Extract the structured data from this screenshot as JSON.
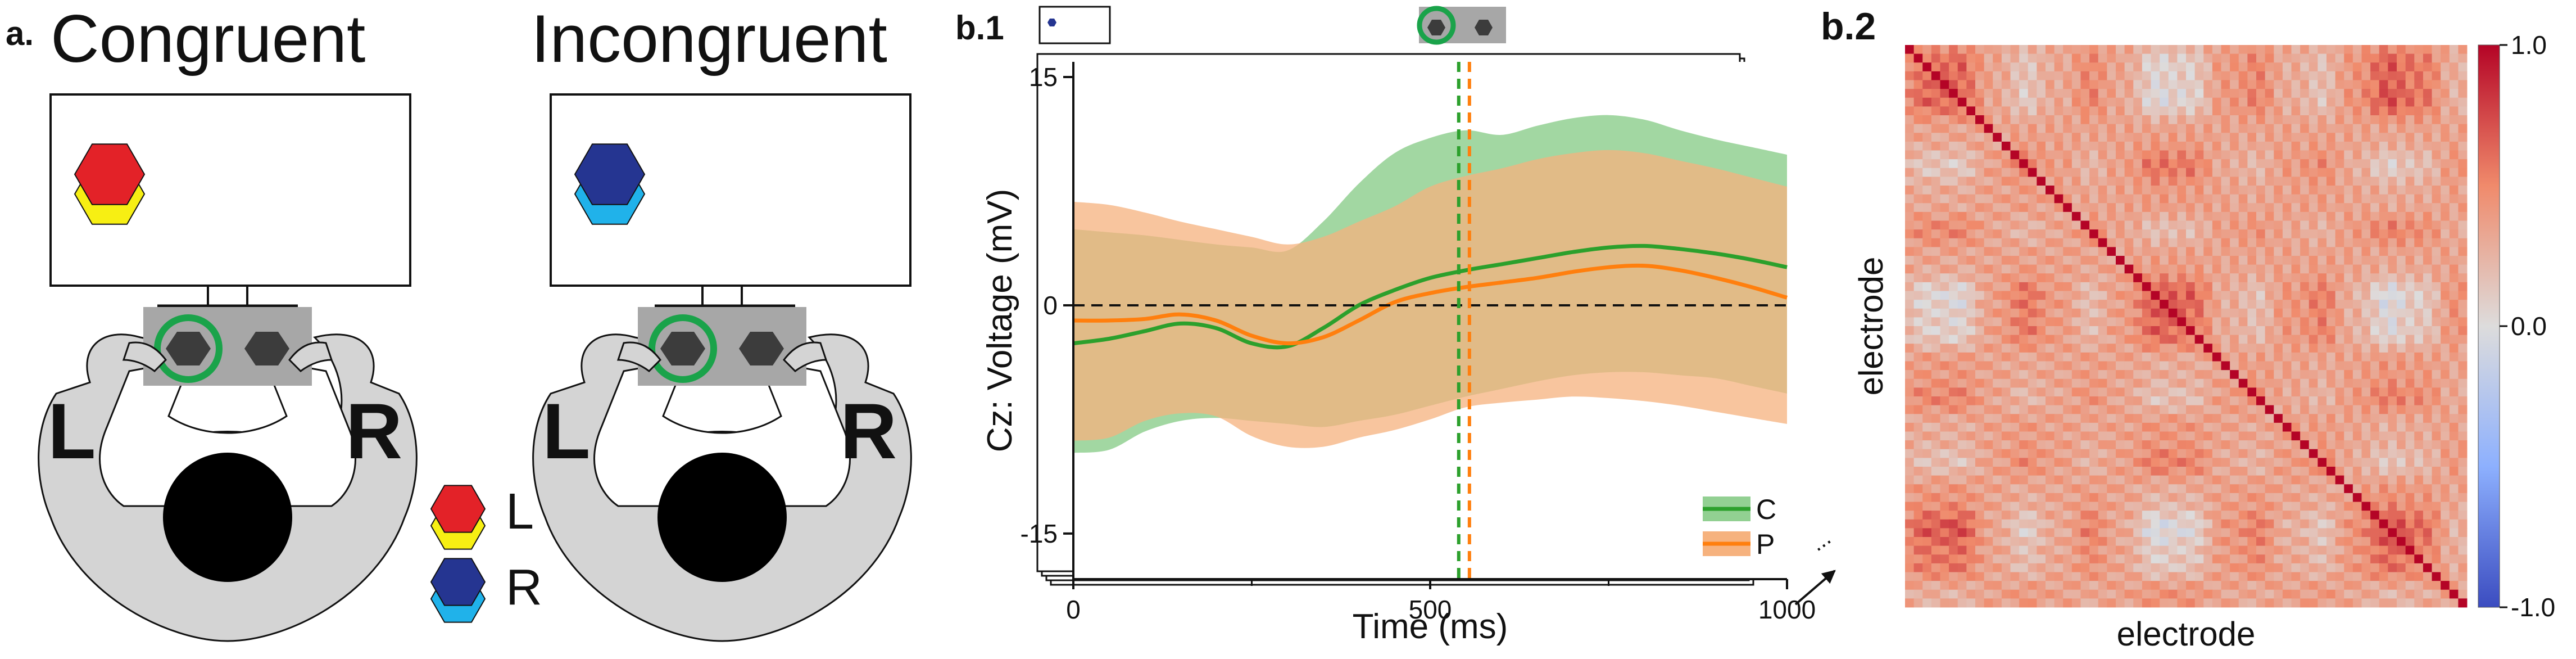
{
  "panel_a": {
    "label": "a.",
    "congruent_title": "Congruent",
    "incongruent_title": "Incongruent",
    "hand_left": "L",
    "hand_right": "R",
    "legend": [
      {
        "label": "L",
        "top_color": "#e32228",
        "bottom_color": "#f7ef13"
      },
      {
        "label": "R",
        "top_color": "#253591",
        "bottom_color": "#20b2ea"
      }
    ],
    "colors": {
      "body": "#d4d4d4",
      "head": "#000000",
      "key_plate": "#a7a7a7",
      "key": "#3c3c3c",
      "highlight_ring": "#1aa34a"
    }
  },
  "panel_b1": {
    "label": "b.1",
    "chart_data": {
      "type": "line",
      "xlabel": "Time (ms)",
      "ylabel": "Cz: Voltage (mV)",
      "xlim": [
        0,
        1000
      ],
      "ylim": [
        -18,
        16
      ],
      "x_ticks": [
        0,
        500,
        1000
      ],
      "x_tick_labels": [
        "0",
        "500",
        "1000"
      ],
      "y_ticks": [
        -15,
        0,
        15
      ],
      "y_tick_labels": [
        "-15",
        "0",
        "15"
      ],
      "x": [
        0,
        50,
        100,
        150,
        200,
        250,
        300,
        350,
        400,
        450,
        500,
        550,
        600,
        650,
        700,
        750,
        800,
        850,
        900,
        950,
        1000
      ],
      "series": [
        {
          "name": "C",
          "color": "#2ca02c",
          "fill": "#92d092",
          "values": [
            -2.5,
            -2.2,
            -1.7,
            -1.2,
            -1.5,
            -2.5,
            -2.7,
            -1.5,
            0.0,
            1.0,
            1.8,
            2.3,
            2.7,
            3.1,
            3.5,
            3.8,
            3.9,
            3.7,
            3.4,
            3.0,
            2.5
          ],
          "upper": [
            5.0,
            4.8,
            4.6,
            4.3,
            4.0,
            3.8,
            3.6,
            5.5,
            8.0,
            10.0,
            11.0,
            11.5,
            11.2,
            11.8,
            12.3,
            12.5,
            12.2,
            11.5,
            10.9,
            10.4,
            9.9
          ],
          "lower": [
            -9.7,
            -9.5,
            -8.3,
            -7.6,
            -7.4,
            -7.6,
            -7.8,
            -8.0,
            -7.6,
            -7.2,
            -6.6,
            -6.0,
            -5.5,
            -5.0,
            -4.6,
            -4.4,
            -4.4,
            -4.6,
            -4.8,
            -5.3,
            -5.8
          ],
          "marker_x": 540
        },
        {
          "name": "P",
          "color": "#ff7f0e",
          "fill": "#f6b27e",
          "values": [
            -1.0,
            -1.0,
            -0.9,
            -0.6,
            -1.0,
            -2.0,
            -2.5,
            -2.1,
            -1.0,
            0.2,
            0.8,
            1.2,
            1.5,
            1.8,
            2.2,
            2.5,
            2.6,
            2.3,
            1.8,
            1.2,
            0.5
          ],
          "upper": [
            6.8,
            6.6,
            6.1,
            5.5,
            5.0,
            4.5,
            4.0,
            4.5,
            5.5,
            6.5,
            7.8,
            8.5,
            9.0,
            9.6,
            10.0,
            10.2,
            10.0,
            9.5,
            9.0,
            8.4,
            7.8
          ],
          "lower": [
            -8.9,
            -8.7,
            -7.6,
            -7.1,
            -7.3,
            -8.6,
            -9.3,
            -9.3,
            -8.7,
            -8.2,
            -7.5,
            -6.7,
            -6.4,
            -6.2,
            -6.0,
            -6.1,
            -6.3,
            -6.6,
            -7.0,
            -7.4,
            -7.8
          ],
          "marker_x": 555
        }
      ],
      "reference_line_y": 0,
      "legend_placement": "bottom-right",
      "grid": false
    },
    "inset_colors": {
      "chip": "#253591",
      "key": "#3c3c3c",
      "plate": "#a7a7a7",
      "ring": "#1aa34a"
    },
    "stack_ellipsis": "..."
  },
  "panel_b2": {
    "label": "b.2",
    "chart_data": {
      "type": "heatmap",
      "xlabel": "electrode",
      "ylabel": "electrode",
      "n": 64,
      "colorbar_ticks": [
        1.0,
        0.0,
        -1.0
      ],
      "colorbar_tick_labels": [
        "1.0",
        "0.0",
        "-1.0"
      ],
      "vmin": -1.0,
      "vmax": 1.0,
      "colormap": "coolwarm",
      "diagonal_value": 1.0
    }
  }
}
